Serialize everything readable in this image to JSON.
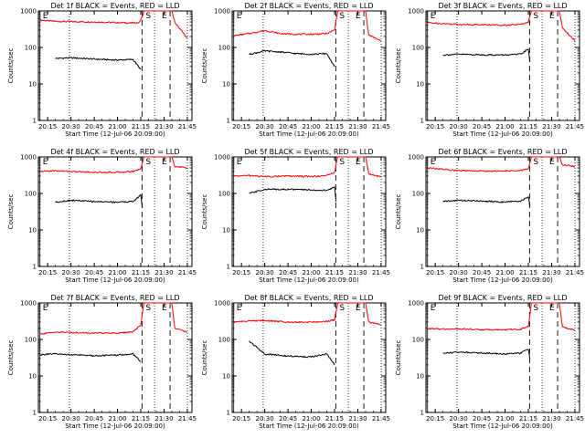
{
  "chart_data": [
    {
      "type": "line",
      "title": "Det 1f BLACK = Events, RED = LLD",
      "xlabel": "Start Time (12-Jul-06 20:09:00)",
      "ylabel": "Counts/sec",
      "x_ticks": [
        "20:15",
        "20:30",
        "20:45",
        "21:00",
        "21:15",
        "21:30",
        "21:45"
      ],
      "y_ticks": [
        "1",
        "10",
        "100",
        "1000"
      ],
      "y_scale": "log",
      "ylim": [
        1,
        1000
      ],
      "markers": {
        "S": "21:17",
        "E": [
          "20:10",
          "21:28"
        ]
      },
      "series": [
        {
          "name": "LLD",
          "color": "#ff0000",
          "x": [
            "20:10",
            "20:20",
            "20:30",
            "20:45",
            "21:00",
            "21:10",
            "21:14",
            "21:16",
            "21:17",
            "21:35",
            "21:37",
            "21:45"
          ],
          "y": [
            560,
            520,
            510,
            500,
            480,
            470,
            480,
            700,
            1000,
            1000,
            480,
            180
          ]
        },
        {
          "name": "Events",
          "color": "#000000",
          "x": [
            "20:20",
            "20:30",
            "20:45",
            "21:00",
            "21:10",
            "21:15"
          ],
          "y": [
            50,
            52,
            48,
            45,
            47,
            25
          ]
        }
      ]
    },
    {
      "type": "line",
      "title": "Det 2f BLACK = Events, RED = LLD",
      "xlabel": "Start Time (12-Jul-06 20:09:00)",
      "ylabel": "Counts/sec",
      "x_ticks": [
        "20:15",
        "20:30",
        "20:45",
        "21:00",
        "21:15",
        "21:30",
        "21:45"
      ],
      "y_ticks": [
        "1",
        "10",
        "100",
        "1000"
      ],
      "y_scale": "log",
      "ylim": [
        1,
        1000
      ],
      "markers": {
        "S": "21:17",
        "E": [
          "20:10",
          "21:28"
        ]
      },
      "series": [
        {
          "name": "LLD",
          "color": "#ff0000",
          "x": [
            "20:10",
            "20:20",
            "20:30",
            "20:40",
            "20:50",
            "21:00",
            "21:10",
            "21:15",
            "21:17",
            "21:35",
            "21:37",
            "21:45"
          ],
          "y": [
            210,
            240,
            290,
            240,
            230,
            230,
            240,
            300,
            1000,
            1000,
            220,
            150
          ]
        },
        {
          "name": "Events",
          "color": "#000000",
          "x": [
            "20:20",
            "20:30",
            "20:40",
            "20:50",
            "21:00",
            "21:10",
            "21:15"
          ],
          "y": [
            65,
            80,
            75,
            68,
            65,
            68,
            30
          ]
        }
      ]
    },
    {
      "type": "line",
      "title": "Det 3f BLACK = Events, RED = LLD",
      "xlabel": "Start Time (12-Jul-06 20:09:00)",
      "ylabel": "Counts/sec",
      "x_ticks": [
        "20:15",
        "20:30",
        "20:45",
        "21:00",
        "21:15",
        "21:30",
        "21:45"
      ],
      "y_ticks": [
        "1",
        "10",
        "100",
        "1000"
      ],
      "y_scale": "log",
      "ylim": [
        1,
        1000
      ],
      "markers": {
        "S": "21:17",
        "E": [
          "20:10",
          "21:28"
        ]
      },
      "series": [
        {
          "name": "LLD",
          "color": "#ff0000",
          "x": [
            "20:10",
            "20:20",
            "20:30",
            "20:45",
            "21:00",
            "21:10",
            "21:15",
            "21:17",
            "21:35",
            "21:37",
            "21:45"
          ],
          "y": [
            480,
            450,
            430,
            420,
            410,
            430,
            500,
            1000,
            1000,
            350,
            150
          ]
        },
        {
          "name": "Events",
          "color": "#000000",
          "x": [
            "20:20",
            "20:30",
            "20:45",
            "21:00",
            "21:10",
            "21:15",
            "21:16"
          ],
          "y": [
            62,
            65,
            63,
            62,
            65,
            90,
            40
          ]
        }
      ]
    },
    {
      "type": "line",
      "title": "Det 4f BLACK = Events, RED = LLD",
      "xlabel": "Start Time (12-Jul-06 20:09:00)",
      "ylabel": "Counts/sec",
      "x_ticks": [
        "20:15",
        "20:30",
        "20:45",
        "21:00",
        "21:15",
        "21:30",
        "21:45"
      ],
      "y_ticks": [
        "1",
        "10",
        "100",
        "1000"
      ],
      "y_scale": "log",
      "ylim": [
        1,
        1000
      ],
      "markers": {
        "S": "21:17",
        "E": [
          "20:10",
          "21:28"
        ]
      },
      "series": [
        {
          "name": "LLD",
          "color": "#ff0000",
          "x": [
            "20:10",
            "20:20",
            "20:30",
            "20:45",
            "21:00",
            "21:10",
            "21:15",
            "21:17",
            "21:35",
            "21:37",
            "21:45"
          ],
          "y": [
            400,
            420,
            400,
            380,
            380,
            400,
            480,
            1000,
            1000,
            550,
            500
          ]
        },
        {
          "name": "Events",
          "color": "#000000",
          "x": [
            "20:20",
            "20:30",
            "20:45",
            "21:00",
            "21:10",
            "21:15",
            "21:16"
          ],
          "y": [
            58,
            65,
            60,
            58,
            60,
            90,
            40
          ]
        }
      ]
    },
    {
      "type": "line",
      "title": "Det 5f BLACK = Events, RED = LLD",
      "xlabel": "Start Time (12-Jul-06 20:09:00)",
      "ylabel": "Counts/sec",
      "x_ticks": [
        "20:15",
        "20:30",
        "20:45",
        "21:00",
        "21:15",
        "21:30",
        "21:45"
      ],
      "y_ticks": [
        "1",
        "10",
        "100",
        "1000"
      ],
      "y_scale": "log",
      "ylim": [
        1,
        1000
      ],
      "markers": {
        "S": "21:17",
        "E": [
          "20:10",
          "21:28"
        ]
      },
      "series": [
        {
          "name": "LLD",
          "color": "#ff0000",
          "x": [
            "20:10",
            "20:20",
            "20:30",
            "20:45",
            "21:00",
            "21:10",
            "21:15",
            "21:17",
            "21:35",
            "21:37",
            "21:45"
          ],
          "y": [
            300,
            310,
            290,
            300,
            290,
            310,
            380,
            1000,
            1000,
            350,
            280
          ]
        },
        {
          "name": "Events",
          "color": "#000000",
          "x": [
            "20:20",
            "20:30",
            "20:45",
            "21:00",
            "21:10",
            "21:15",
            "21:16"
          ],
          "y": [
            100,
            130,
            130,
            125,
            120,
            150,
            60
          ]
        }
      ]
    },
    {
      "type": "line",
      "title": "Det 6f BLACK = Events, RED = LLD",
      "xlabel": "Start Time (12-Jul-06 20:09:00)",
      "ylabel": "Counts/sec",
      "x_ticks": [
        "20:15",
        "20:30",
        "20:45",
        "21:00",
        "21:15",
        "21:30",
        "21:45"
      ],
      "y_ticks": [
        "1",
        "10",
        "100",
        "1000"
      ],
      "y_scale": "log",
      "ylim": [
        1,
        1000
      ],
      "markers": {
        "S": "21:17",
        "E": [
          "20:10",
          "21:28"
        ]
      },
      "series": [
        {
          "name": "LLD",
          "color": "#ff0000",
          "x": [
            "20:10",
            "20:20",
            "20:30",
            "20:45",
            "21:00",
            "21:10",
            "21:15",
            "21:17",
            "21:35",
            "21:37",
            "21:45"
          ],
          "y": [
            500,
            460,
            420,
            410,
            410,
            420,
            480,
            1000,
            1000,
            600,
            550
          ]
        },
        {
          "name": "Events",
          "color": "#000000",
          "x": [
            "20:20",
            "20:30",
            "20:45",
            "21:00",
            "21:10",
            "21:15",
            "21:16"
          ],
          "y": [
            60,
            65,
            62,
            58,
            62,
            80,
            45
          ]
        }
      ]
    },
    {
      "type": "line",
      "title": "Det 7f BLACK = Events, RED = LLD",
      "xlabel": "Start Time (12-Jul-06 20:09:00)",
      "ylabel": "Counts/sec",
      "x_ticks": [
        "20:15",
        "20:30",
        "20:45",
        "21:00",
        "21:15",
        "21:30",
        "21:45"
      ],
      "y_ticks": [
        "1",
        "10",
        "100",
        "1000"
      ],
      "y_scale": "log",
      "ylim": [
        1,
        1000
      ],
      "markers": {
        "S": "21:17",
        "E": [
          "20:10",
          "21:28"
        ]
      },
      "series": [
        {
          "name": "LLD",
          "color": "#ff0000",
          "x": [
            "20:10",
            "20:20",
            "20:30",
            "20:45",
            "21:00",
            "21:10",
            "21:15",
            "21:17",
            "21:35",
            "21:37",
            "21:45"
          ],
          "y": [
            140,
            160,
            155,
            150,
            150,
            160,
            250,
            1000,
            1000,
            200,
            160
          ]
        },
        {
          "name": "Events",
          "color": "#000000",
          "x": [
            "20:10",
            "20:20",
            "20:30",
            "20:45",
            "21:00",
            "21:10",
            "21:15"
          ],
          "y": [
            38,
            40,
            38,
            36,
            37,
            40,
            25
          ]
        }
      ]
    },
    {
      "type": "line",
      "title": "Det 8f BLACK = Events, RED = LLD",
      "xlabel": "Start Time (12-Jul-06 20:09:00)",
      "ylabel": "Counts/sec",
      "x_ticks": [
        "20:15",
        "20:30",
        "20:45",
        "21:00",
        "21:15",
        "21:30",
        "21:45"
      ],
      "y_ticks": [
        "1",
        "10",
        "100",
        "1000"
      ],
      "y_scale": "log",
      "ylim": [
        1,
        1000
      ],
      "markers": {
        "S": "21:17",
        "E": [
          "20:10",
          "21:28"
        ]
      },
      "series": [
        {
          "name": "LLD",
          "color": "#ff0000",
          "x": [
            "20:10",
            "20:20",
            "20:30",
            "20:45",
            "21:00",
            "21:10",
            "21:15",
            "21:17",
            "21:35",
            "21:37",
            "21:45"
          ],
          "y": [
            300,
            320,
            330,
            300,
            300,
            310,
            340,
            1000,
            1000,
            300,
            250
          ]
        },
        {
          "name": "Events",
          "color": "#000000",
          "x": [
            "20:20",
            "20:25",
            "20:30",
            "20:45",
            "21:00",
            "21:10",
            "21:15"
          ],
          "y": [
            90,
            60,
            40,
            35,
            33,
            40,
            20
          ]
        }
      ]
    },
    {
      "type": "line",
      "title": "Det 9f BLACK = Events, RED = LLD",
      "xlabel": "Start Time (12-Jul-06 20:09:00)",
      "ylabel": "Counts/sec",
      "x_ticks": [
        "20:15",
        "20:30",
        "20:45",
        "21:00",
        "21:15",
        "21:30",
        "21:45"
      ],
      "y_ticks": [
        "1",
        "10",
        "100",
        "1000"
      ],
      "y_scale": "log",
      "ylim": [
        1,
        1000
      ],
      "markers": {
        "S": "21:17",
        "E": [
          "20:10",
          "21:28"
        ]
      },
      "series": [
        {
          "name": "LLD",
          "color": "#ff0000",
          "x": [
            "20:10",
            "20:20",
            "20:30",
            "20:45",
            "21:00",
            "21:10",
            "21:15",
            "21:17",
            "21:35",
            "21:37",
            "21:45"
          ],
          "y": [
            200,
            190,
            195,
            185,
            185,
            190,
            230,
            1000,
            1000,
            220,
            180
          ]
        },
        {
          "name": "Events",
          "color": "#000000",
          "x": [
            "20:20",
            "20:30",
            "20:45",
            "21:00",
            "21:10",
            "21:15",
            "21:16"
          ],
          "y": [
            42,
            45,
            43,
            40,
            42,
            55,
            30
          ]
        }
      ]
    }
  ]
}
